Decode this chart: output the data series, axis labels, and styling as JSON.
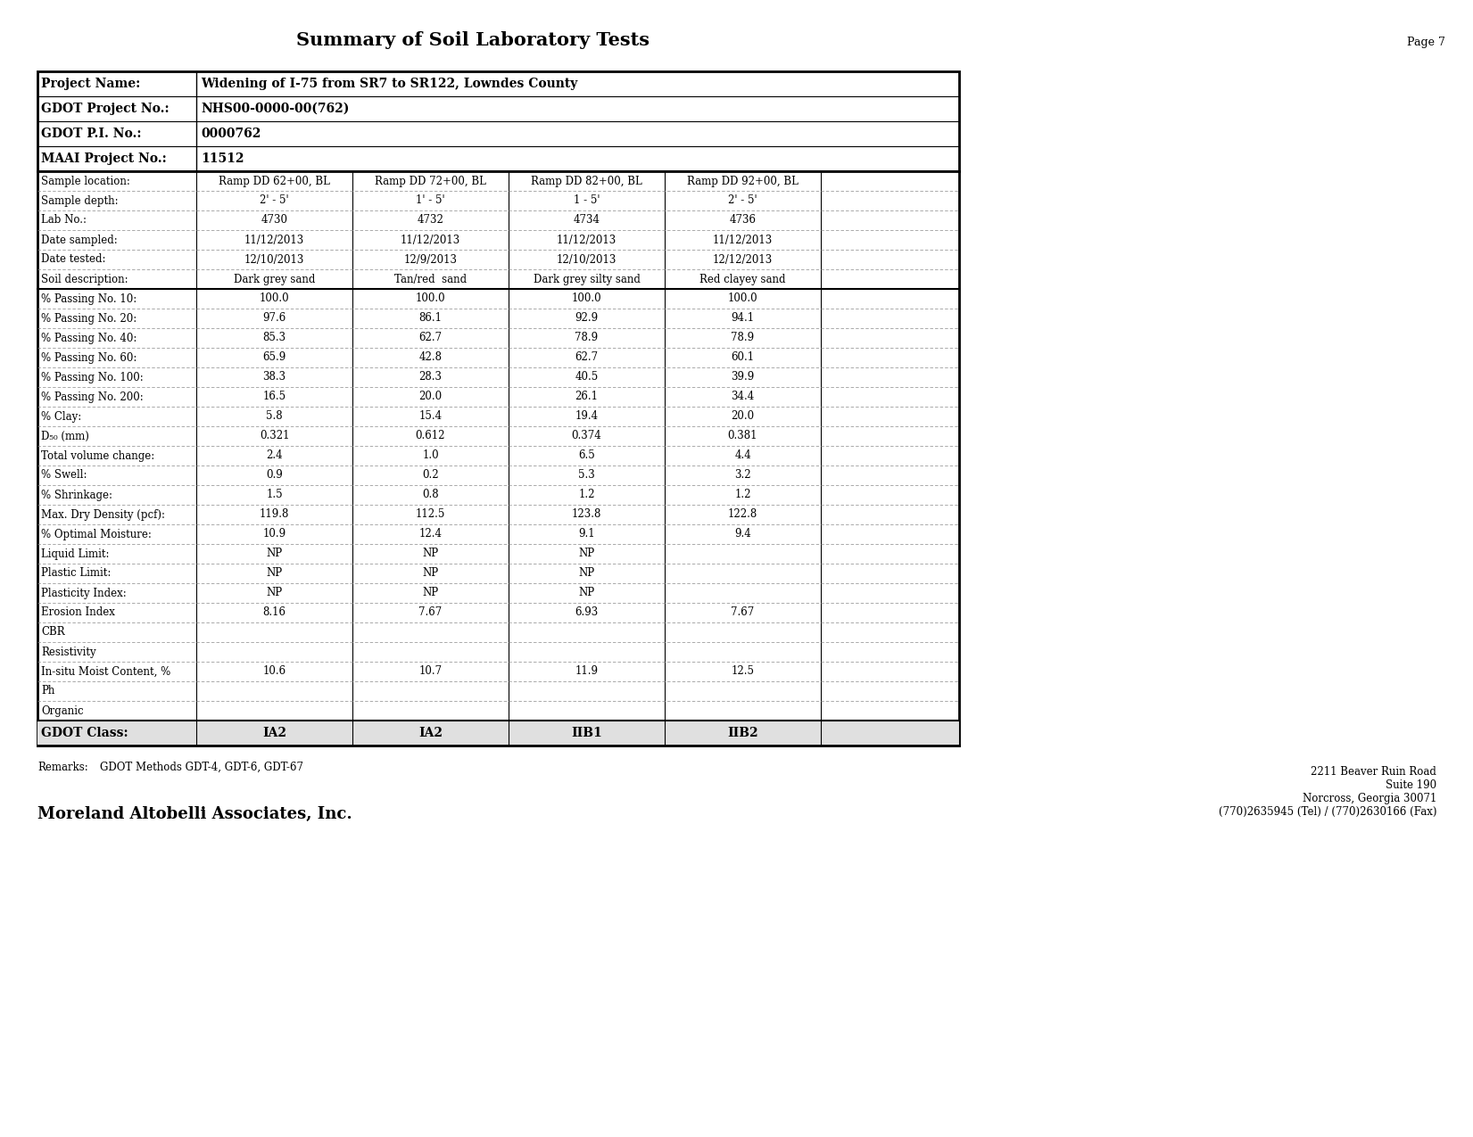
{
  "title": "Summary of Soil Laboratory Tests",
  "page": "Page 7",
  "project_info": [
    [
      "Project Name:",
      "Widening of I-75 from SR7 to SR122, Lowndes County"
    ],
    [
      "GDOT Project No.:",
      "NHS00-0000-00(762)"
    ],
    [
      "GDOT P.I. No.:",
      "0000762"
    ],
    [
      "MAAI Project No.:",
      "11512"
    ]
  ],
  "data_rows": [
    [
      "Sample location:",
      "Ramp DD 62+00, BL",
      "Ramp DD 72+00, BL",
      "Ramp DD 82+00, BL",
      "Ramp DD 92+00, BL",
      ""
    ],
    [
      "Sample depth:",
      "2' - 5'",
      "1' - 5'",
      "1 - 5'",
      "2' - 5'",
      ""
    ],
    [
      "Lab No.:",
      "4730",
      "4732",
      "4734",
      "4736",
      ""
    ],
    [
      "Date sampled:",
      "11/12/2013",
      "11/12/2013",
      "11/12/2013",
      "11/12/2013",
      ""
    ],
    [
      "Date tested:",
      "12/10/2013",
      "12/9/2013",
      "12/10/2013",
      "12/12/2013",
      ""
    ],
    [
      "Soil description:",
      "Dark grey sand",
      "Tan/red  sand",
      "Dark grey silty sand",
      "Red clayey sand",
      ""
    ],
    [
      "% Passing No. 10:",
      "100.0",
      "100.0",
      "100.0",
      "100.0",
      ""
    ],
    [
      "% Passing No. 20:",
      "97.6",
      "86.1",
      "92.9",
      "94.1",
      ""
    ],
    [
      "% Passing No. 40:",
      "85.3",
      "62.7",
      "78.9",
      "78.9",
      ""
    ],
    [
      "% Passing No. 60:",
      "65.9",
      "42.8",
      "62.7",
      "60.1",
      ""
    ],
    [
      "% Passing No. 100:",
      "38.3",
      "28.3",
      "40.5",
      "39.9",
      ""
    ],
    [
      "% Passing No. 200:",
      "16.5",
      "20.0",
      "26.1",
      "34.4",
      ""
    ],
    [
      "% Clay:",
      "5.8",
      "15.4",
      "19.4",
      "20.0",
      ""
    ],
    [
      "D₅₀ (mm)",
      "0.321",
      "0.612",
      "0.374",
      "0.381",
      ""
    ],
    [
      "Total volume change:",
      "2.4",
      "1.0",
      "6.5",
      "4.4",
      ""
    ],
    [
      "% Swell:",
      "0.9",
      "0.2",
      "5.3",
      "3.2",
      ""
    ],
    [
      "% Shrinkage:",
      "1.5",
      "0.8",
      "1.2",
      "1.2",
      ""
    ],
    [
      "Max. Dry Density (pcf):",
      "119.8",
      "112.5",
      "123.8",
      "122.8",
      ""
    ],
    [
      "% Optimal Moisture:",
      "10.9",
      "12.4",
      "9.1",
      "9.4",
      ""
    ],
    [
      "Liquid Limit:",
      "NP",
      "NP",
      "NP",
      "",
      ""
    ],
    [
      "Plastic Limit:",
      "NP",
      "NP",
      "NP",
      "",
      ""
    ],
    [
      "Plasticity Index:",
      "NP",
      "NP",
      "NP",
      "",
      ""
    ],
    [
      "Erosion Index",
      "8.16",
      "7.67",
      "6.93",
      "7.67",
      ""
    ],
    [
      "CBR",
      "",
      "",
      "",
      "",
      ""
    ],
    [
      "Resistivity",
      "",
      "",
      "",
      "",
      ""
    ],
    [
      "In-situ Moist Content, %",
      "10.6",
      "10.7",
      "11.9",
      "12.5",
      ""
    ],
    [
      "Ph",
      "",
      "",
      "",
      "",
      ""
    ],
    [
      "Organic",
      "",
      "",
      "",
      "",
      ""
    ]
  ],
  "footer_row": [
    "GDOT Class:",
    "IA2",
    "IA2",
    "IIB1",
    "IIB2",
    ""
  ],
  "remarks_label": "Remarks:",
  "remarks_text": "GDOT Methods GDT-4, GDT-6, GDT-67",
  "company": "Moreland Altobelli Associates, Inc.",
  "address": [
    "2211 Beaver Ruin Road",
    "Suite 190",
    "Norcross, Georgia 30071",
    "(770)2635945 (Tel) / (770)2630166 (Fax)"
  ],
  "bg_color": "#ffffff"
}
